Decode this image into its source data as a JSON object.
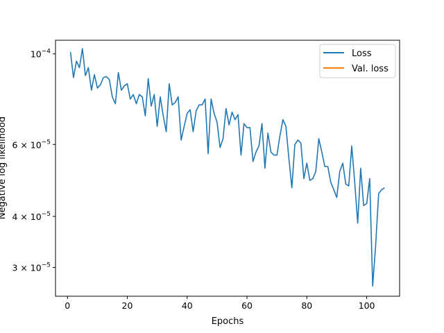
{
  "chart_data": {
    "type": "line",
    "title": "",
    "xlabel": "Epochs",
    "ylabel": "Negative log likelihood",
    "yscale": "log",
    "xlim": [
      -4,
      111
    ],
    "ylim": [
      2.55e-05,
      0.000108
    ],
    "grid": false,
    "legend_position": "top-right",
    "x_ticks": [
      {
        "value": 0,
        "label": "0"
      },
      {
        "value": 20,
        "label": "20"
      },
      {
        "value": 40,
        "label": "40"
      },
      {
        "value": 60,
        "label": "60"
      },
      {
        "value": 80,
        "label": "80"
      },
      {
        "value": 100,
        "label": "100"
      }
    ],
    "y_ticks": [
      {
        "value": 0.0001,
        "mantissa": "10",
        "exponent": "−4"
      },
      {
        "value": 6e-05,
        "mantissa": "6 × 10",
        "exponent": "−5"
      },
      {
        "value": 4e-05,
        "mantissa": "4 × 10",
        "exponent": "−5"
      },
      {
        "value": 3e-05,
        "mantissa": "3 × 10",
        "exponent": "−5"
      }
    ],
    "series": [
      {
        "name": "Loss",
        "color": "#1f77b4",
        "x": [
          1,
          2,
          3,
          4,
          5,
          6,
          7,
          8,
          9,
          10,
          11,
          12,
          13,
          14,
          15,
          16,
          17,
          18,
          19,
          20,
          21,
          22,
          23,
          24,
          25,
          26,
          27,
          28,
          29,
          30,
          31,
          32,
          33,
          34,
          35,
          36,
          37,
          38,
          39,
          40,
          41,
          42,
          43,
          44,
          45,
          46,
          47,
          48,
          49,
          50,
          51,
          52,
          53,
          54,
          55,
          56,
          57,
          58,
          59,
          60,
          61,
          62,
          63,
          64,
          65,
          66,
          67,
          68,
          69,
          70,
          71,
          72,
          73,
          74,
          75,
          76,
          77,
          78,
          79,
          80,
          81,
          82,
          83,
          84,
          85,
          86,
          87,
          88,
          89,
          90,
          91,
          92,
          93,
          94,
          95,
          96,
          97,
          98,
          99,
          100,
          101,
          102,
          103,
          104,
          105,
          106
        ],
        "y": [
          0.000101,
          8.75e-05,
          9.6e-05,
          9.25e-05,
          0.000103,
          8.85e-05,
          9.25e-05,
          8.15e-05,
          8.9e-05,
          8.25e-05,
          8.4e-05,
          8.75e-05,
          8.8e-05,
          8.65e-05,
          7.85e-05,
          7.55e-05,
          9e-05,
          8.15e-05,
          8.35e-05,
          8.45e-05,
          7.75e-05,
          7.95e-05,
          7.55e-05,
          7.95e-05,
          7.85e-05,
          7.05e-05,
          8.7e-05,
          7.45e-05,
          7.95e-05,
          6.65e-05,
          7.85e-05,
          7.05e-05,
          6.45e-05,
          8.45e-05,
          7.5e-05,
          7.6e-05,
          7.85e-05,
          6.15e-05,
          6.65e-05,
          7.15e-05,
          7.3e-05,
          6.45e-05,
          7.25e-05,
          7.5e-05,
          7.5e-05,
          7.75e-05,
          5.7e-05,
          7.75e-05,
          7.15e-05,
          6.8e-05,
          5.9e-05,
          6.2e-05,
          7.35e-05,
          6.7e-05,
          7.2e-05,
          6.9e-05,
          7.1e-05,
          5.65e-05,
          6.75e-05,
          6.6e-05,
          6.6e-05,
          5.45e-05,
          5.75e-05,
          5.95e-05,
          6.75e-05,
          5.25e-05,
          6.4e-05,
          5.75e-05,
          5.65e-05,
          5.65e-05,
          6.3e-05,
          6.9e-05,
          6.65e-05,
          5.55e-05,
          4.7e-05,
          6e-05,
          6.15e-05,
          6.05e-05,
          4.95e-05,
          5.4e-05,
          4.9e-05,
          4.95e-05,
          5.15e-05,
          6.2e-05,
          5.75e-05,
          5.3e-05,
          5.3e-05,
          4.85e-05,
          4.65e-05,
          4.45e-05,
          5.15e-05,
          5.4e-05,
          4.8e-05,
          4.75e-05,
          5.95e-05,
          4.85e-05,
          3.85e-05,
          5.25e-05,
          4.25e-05,
          4.3e-05,
          4.95e-05,
          2.7e-05,
          3.4e-05,
          4.55e-05,
          4.65e-05,
          4.7e-05
        ]
      },
      {
        "name": "Val. loss",
        "color": "#ff7f0e",
        "x": [],
        "y": []
      }
    ]
  }
}
